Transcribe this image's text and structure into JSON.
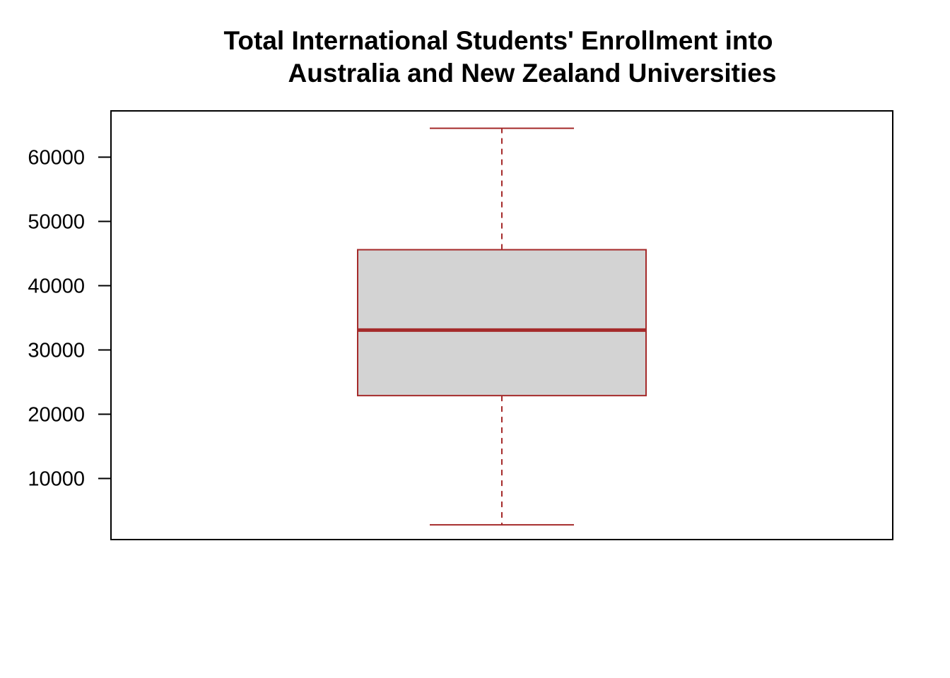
{
  "chart_data": {
    "type": "boxplot",
    "title_lines": [
      "Total International Students' Enrollment into",
      "Australia and New Zealand Universities"
    ],
    "xlabel": "",
    "ylabel": "",
    "ylim": [
      500,
      67200
    ],
    "yticks": [
      10000,
      20000,
      30000,
      40000,
      50000,
      60000
    ],
    "ytick_labels": [
      "10000",
      "20000",
      "30000",
      "40000",
      "50000",
      "60000"
    ],
    "box": {
      "min": 2800,
      "q1": 22900,
      "median": 33100,
      "q3": 45600,
      "max": 64500
    },
    "grid": false,
    "legend": "none",
    "colors": {
      "box_border": "#a52a2a",
      "box_fill": "#d3d3d3",
      "frame": "#000000"
    }
  }
}
